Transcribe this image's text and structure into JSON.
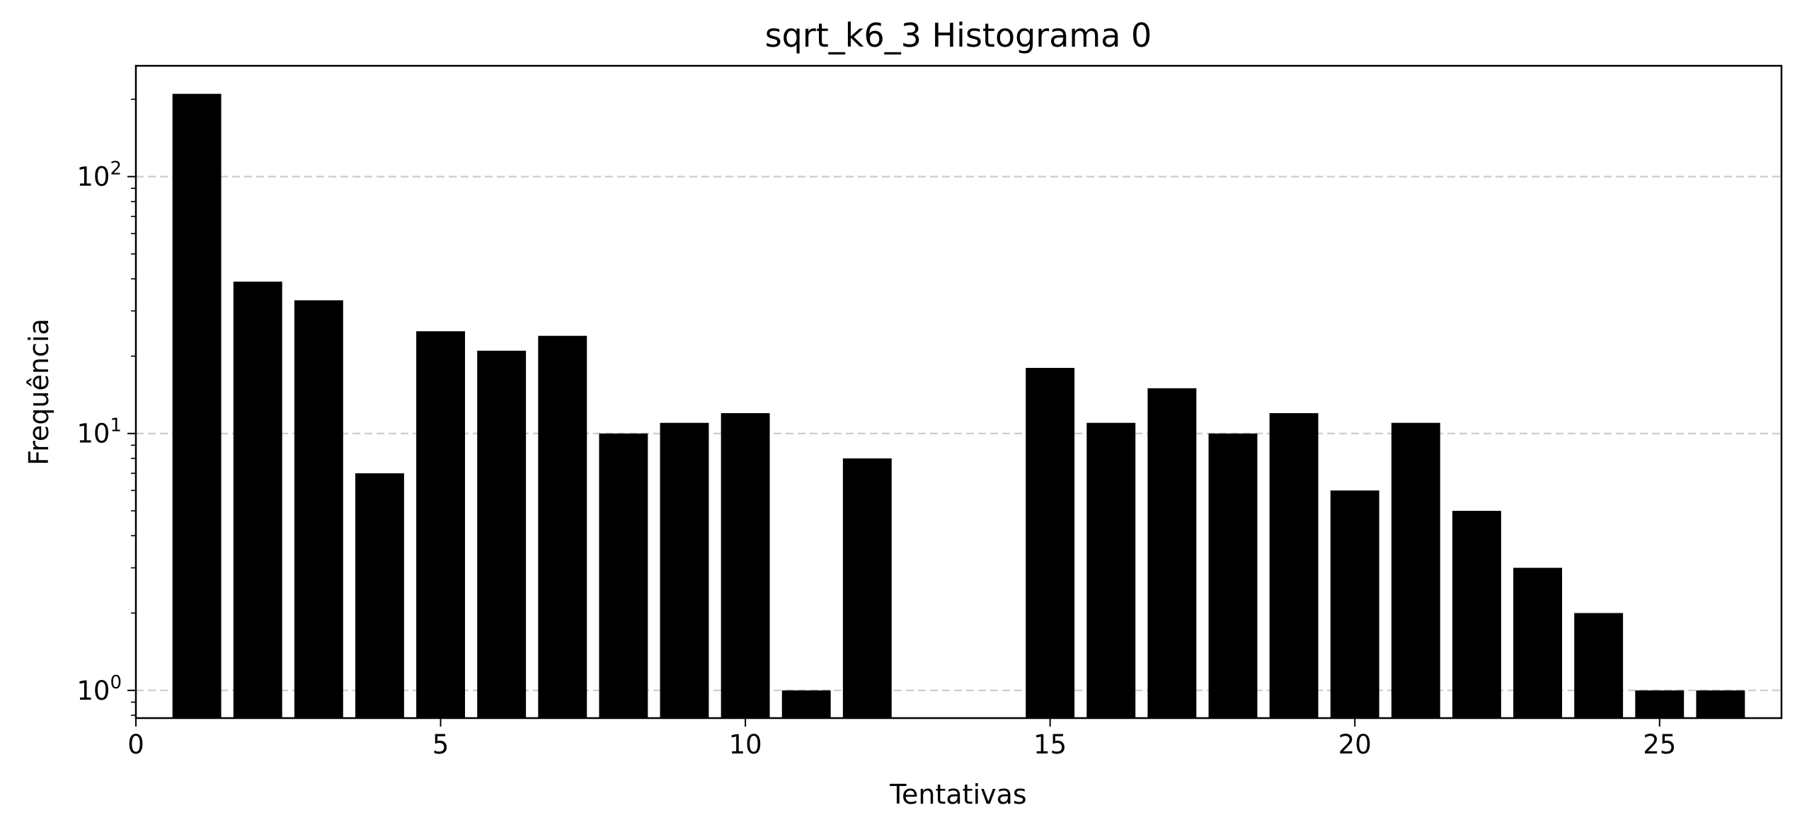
{
  "chart_data": {
    "type": "bar",
    "title": "sqrt_k6_3 Histograma 0",
    "xlabel": "Tentativas",
    "ylabel": "Frequência",
    "yscale": "log",
    "grid": "y-major-dashed",
    "xlim": [
      0,
      27
    ],
    "ylim": [
      0.78,
      270
    ],
    "xticks": [
      0,
      5,
      10,
      15,
      20,
      25
    ],
    "yticks": [
      {
        "base": "10",
        "exp": "0",
        "value": 1
      },
      {
        "base": "10",
        "exp": "1",
        "value": 10
      },
      {
        "base": "10",
        "exp": "2",
        "value": 100
      }
    ],
    "bar_color": "#000000",
    "grid_color": "#cccccc",
    "x": [
      1,
      2,
      3,
      4,
      5,
      6,
      7,
      8,
      9,
      10,
      11,
      12,
      15,
      16,
      17,
      18,
      19,
      20,
      21,
      22,
      23,
      24,
      25,
      26
    ],
    "values": [
      210,
      39,
      33,
      7,
      25,
      21,
      24,
      10,
      11,
      12,
      1,
      8,
      18,
      11,
      15,
      10,
      12,
      6,
      11,
      5,
      3,
      2,
      1,
      1
    ]
  }
}
